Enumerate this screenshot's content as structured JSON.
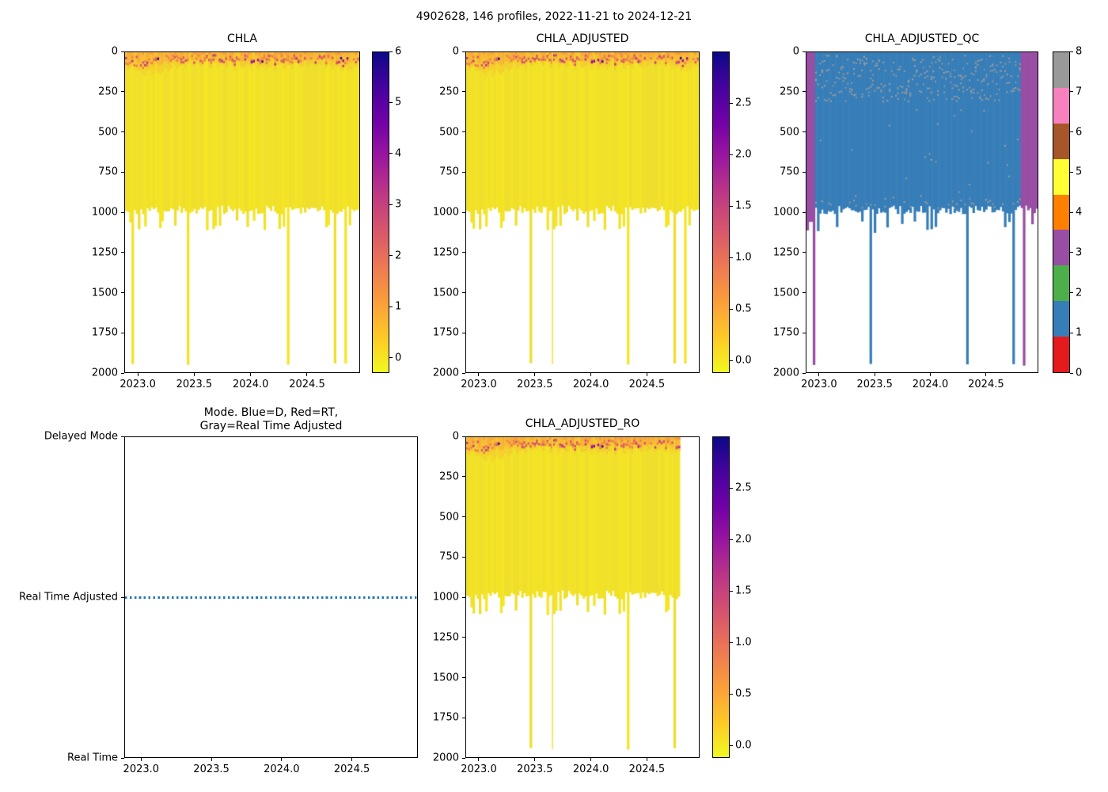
{
  "figure": {
    "title": "4902628, 146 profiles, 2022-11-21 to 2024-12-21",
    "float_id": "4902628",
    "n_profiles": 146,
    "date_start": "2022-11-21",
    "date_end": "2024-12-21"
  },
  "colors": {
    "body_yellow": "#f2e227",
    "body_shades": [
      "#f2e227",
      "#f0e12b",
      "#f4e524",
      "#efde2c"
    ],
    "band_orange": "#fba63c",
    "band_fade": "#f6c332",
    "band_deep_orange": "#ef7e50",
    "band_red": "#d8576b",
    "band_magenta": "#bd3786",
    "band_purple": "#8e0ca4",
    "band_navy": "#2d049b",
    "thin_spike_yellow": "#f3dd2e",
    "qc_blue": "#377eb8",
    "qc_purple": "#984ea3",
    "qc_speckle": "#9c9c9c",
    "mode_line_blue": "#1f77b4",
    "axis": "#000000",
    "plasma_r_bottom_to_top": [
      "#f0f921",
      "#fdc926",
      "#fb9e3a",
      "#ed7953",
      "#d8576b",
      "#bd3786",
      "#9c179e",
      "#7201a8",
      "#46039f",
      "#0d0887"
    ]
  },
  "chart_data": [
    {
      "type": "heatmap",
      "title": "CHLA",
      "x_range": [
        2022.88,
        2024.97
      ],
      "x_ticks": [
        "2023.0",
        "2023.5",
        "2024.0",
        "2024.5"
      ],
      "x_tick_values": [
        2023.0,
        2023.5,
        2024.0,
        2024.5
      ],
      "y_range": [
        0,
        2000
      ],
      "y_axis_direction": "depth-down",
      "y_ticks": [
        "0",
        "250",
        "500",
        "750",
        "1000",
        "1250",
        "1500",
        "1750",
        "2000"
      ],
      "y_tick_values": [
        0,
        250,
        500,
        750,
        1000,
        1250,
        1500,
        1750,
        2000
      ],
      "colorbar": {
        "cmap": "plasma_r",
        "vmin": -0.3,
        "vmax": 6.0,
        "ticks": [
          "0",
          "1",
          "2",
          "3",
          "4",
          "5",
          "6"
        ],
        "tick_values": [
          0,
          1,
          2,
          3,
          4,
          5,
          6
        ]
      },
      "content": {
        "body_value": 0.05,
        "surface_band": {
          "depth_min": 0,
          "depth_max": 190,
          "value_range": [
            0.3,
            6.0
          ]
        },
        "profile_bottom_depth_range": [
          950,
          1045
        ],
        "deep_spike_years": [
          2022.95,
          2023.45,
          2024.33,
          2024.76,
          2024.84
        ],
        "deep_spike_depth": 1950,
        "thin_spike_years": [],
        "mid_spike_years": [
          2023.0,
          2023.07,
          2023.2,
          2023.33,
          2023.98,
          2024.12,
          2024.67,
          2024.89
        ],
        "mid_spike_depth": 1110,
        "data_end_year": 2024.97,
        "dark_spot_year_clusters": [
          [
            2023.1,
            2023.2
          ],
          [
            2023.96,
            2024.12
          ],
          [
            2024.8,
            2024.92
          ]
        ],
        "band_deep_centers": [
          2023.08,
          2024.86,
          2024.12
        ]
      }
    },
    {
      "type": "heatmap",
      "title": "CHLA_ADJUSTED",
      "x_range": [
        2022.88,
        2024.97
      ],
      "x_ticks": [
        "2023.0",
        "2023.5",
        "2024.0",
        "2024.5"
      ],
      "x_tick_values": [
        2023.0,
        2023.5,
        2024.0,
        2024.5
      ],
      "y_range": [
        0,
        2000
      ],
      "y_axis_direction": "depth-down",
      "y_ticks": [
        "0",
        "250",
        "500",
        "750",
        "1000",
        "1250",
        "1500",
        "1750",
        "2000"
      ],
      "y_tick_values": [
        0,
        250,
        500,
        750,
        1000,
        1250,
        1500,
        1750,
        2000
      ],
      "colorbar": {
        "cmap": "plasma_r",
        "vmin": -0.12,
        "vmax": 3.0,
        "ticks": [
          "0.0",
          "0.5",
          "1.0",
          "1.5",
          "2.0",
          "2.5"
        ],
        "tick_values": [
          0.0,
          0.5,
          1.0,
          1.5,
          2.0,
          2.5
        ]
      },
      "content": {
        "body_value": 0.03,
        "surface_band": {
          "depth_min": 0,
          "depth_max": 190,
          "value_range": [
            0.2,
            3.0
          ]
        },
        "profile_bottom_depth_range": [
          950,
          1045
        ],
        "deep_spike_years": [
          2023.46,
          2024.33,
          2024.76,
          2024.84
        ],
        "deep_spike_depth": 1950,
        "thin_spike_years": [
          2023.65
        ],
        "mid_spike_years": [
          2022.95,
          2023.0,
          2023.07,
          2023.2,
          2023.33,
          2023.98,
          2024.12,
          2024.67,
          2024.89
        ],
        "mid_spike_depth": 1110,
        "data_end_year": 2024.97,
        "dark_spot_year_clusters": [
          [
            2023.1,
            2023.2
          ],
          [
            2023.96,
            2024.12
          ],
          [
            2024.8,
            2024.92
          ]
        ],
        "band_deep_centers": [
          2023.08,
          2024.86,
          2024.12
        ]
      }
    },
    {
      "type": "heatmap",
      "title": "CHLA_ADJUSTED_QC",
      "x_range": [
        2022.88,
        2024.97
      ],
      "x_ticks": [
        "2023.0",
        "2023.5",
        "2024.0",
        "2024.5"
      ],
      "x_tick_values": [
        2023.0,
        2023.5,
        2024.0,
        2024.5
      ],
      "y_range": [
        0,
        2000
      ],
      "y_axis_direction": "depth-down",
      "y_ticks": [
        "0",
        "250",
        "500",
        "750",
        "1000",
        "1250",
        "1500",
        "1750",
        "2000"
      ],
      "y_tick_values": [
        0,
        250,
        500,
        750,
        1000,
        1250,
        1500,
        1750,
        2000
      ],
      "colorbar": {
        "type": "discrete",
        "ticks": [
          "0",
          "1",
          "2",
          "3",
          "4",
          "5",
          "6",
          "7",
          "8"
        ],
        "tick_values": [
          0,
          1,
          2,
          3,
          4,
          5,
          6,
          7,
          8
        ],
        "segment_colors_low_to_high": [
          "#e41a1c",
          "#377eb8",
          "#4daf4a",
          "#984ea3",
          "#ff7f00",
          "#ffff33",
          "#a65628",
          "#f781bf",
          "#999999"
        ]
      },
      "content": {
        "dominant_qc_value": 1,
        "speckle_qc_value": 8,
        "edge_qc_value": 3,
        "left_edge_qc3_until_year": 2022.93,
        "right_edge_qc3_from_year": 2024.815,
        "profile_bottom_depth_range": [
          950,
          1045
        ],
        "deep_spikes": [
          {
            "year": 2022.95,
            "qc": 3
          },
          {
            "year": 2023.46,
            "qc": 1
          },
          {
            "year": 2024.33,
            "qc": 1
          },
          {
            "year": 2024.76,
            "qc": 1
          },
          {
            "year": 2024.84,
            "qc": 3
          }
        ],
        "deep_spike_depth": 1950,
        "short_qc3_spike": {
          "year": 2024.93,
          "depth": 1075
        },
        "mid_spike_years": [
          2022.99,
          2023.16,
          2023.5,
          2024.67
        ],
        "mid_spike_depth": 1110,
        "speckle_dense_depth_range": [
          10,
          310
        ],
        "data_end_year": 2024.97
      }
    },
    {
      "type": "line",
      "title_line1": "Mode. Blue=D, Red=RT,",
      "title_line2": "Gray=Real Time Adjusted",
      "x_range": [
        2022.88,
        2024.97
      ],
      "x_ticks": [
        "2023.0",
        "2023.5",
        "2024.0",
        "2024.5"
      ],
      "x_tick_values": [
        2023.0,
        2023.5,
        2024.0,
        2024.5
      ],
      "y_categories": [
        "Delayed Mode",
        "Real Time Adjusted",
        "Real Time"
      ],
      "series": [
        {
          "name": "mode",
          "style": "dotted",
          "color": "#1f77b4",
          "constant_value": "Real Time Adjusted",
          "x_start": 2022.89,
          "x_end": 2024.97
        }
      ],
      "legend": {
        "Blue": "D",
        "Red": "RT",
        "Gray": "Real Time Adjusted"
      }
    },
    {
      "type": "heatmap",
      "title": "CHLA_ADJUSTED_RO",
      "x_range": [
        2022.88,
        2024.97
      ],
      "x_ticks": [
        "2023.0",
        "2023.5",
        "2024.0",
        "2024.5"
      ],
      "x_tick_values": [
        2023.0,
        2023.5,
        2024.0,
        2024.5
      ],
      "y_range": [
        0,
        2000
      ],
      "y_axis_direction": "depth-down",
      "y_ticks": [
        "0",
        "250",
        "500",
        "750",
        "1000",
        "1250",
        "1500",
        "1750",
        "2000"
      ],
      "y_tick_values": [
        0,
        250,
        500,
        750,
        1000,
        1250,
        1500,
        1750,
        2000
      ],
      "colorbar": {
        "cmap": "plasma_r",
        "vmin": -0.12,
        "vmax": 3.0,
        "ticks": [
          "0.0",
          "0.5",
          "1.0",
          "1.5",
          "2.0",
          "2.5"
        ],
        "tick_values": [
          0.0,
          0.5,
          1.0,
          1.5,
          2.0,
          2.5
        ]
      },
      "content": {
        "body_value": 0.03,
        "surface_band": {
          "depth_min": 0,
          "depth_max": 190,
          "value_range": [
            0.2,
            3.0
          ]
        },
        "profile_bottom_depth_range": [
          950,
          1045
        ],
        "deep_spike_years": [
          2023.46,
          2024.33,
          2024.76
        ],
        "deep_spike_depth": 1950,
        "thin_spike_years": [
          2023.65
        ],
        "mid_spike_years": [
          2022.95,
          2023.0,
          2023.07,
          2023.2,
          2023.33,
          2023.98,
          2024.12,
          2024.67
        ],
        "mid_spike_depth": 1110,
        "data_end_year": 2024.805,
        "dark_spot_year_clusters": [
          [
            2023.1,
            2023.2
          ],
          [
            2023.96,
            2024.12
          ]
        ],
        "band_deep_centers": [
          2023.08,
          2024.86,
          2024.12
        ]
      }
    }
  ]
}
